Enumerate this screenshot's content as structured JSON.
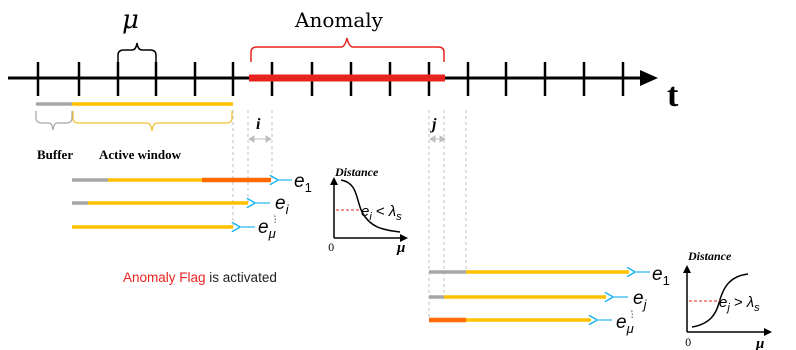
{
  "timeline": {
    "axis_label": "t",
    "mu_label": "μ",
    "anomaly_label": "Anomaly"
  },
  "window": {
    "buffer_label": "Buffer",
    "active_label": "Active window",
    "i_label": "i",
    "j_label": "j"
  },
  "errors_left": {
    "e1": {
      "base": "e",
      "sub": "1"
    },
    "ei": {
      "base": "e",
      "sub": "i"
    },
    "emu": {
      "base": "e",
      "sub": "μ"
    }
  },
  "errors_right": {
    "e1": {
      "base": "e",
      "sub": "1"
    },
    "ej": {
      "base": "e",
      "sub": "j"
    },
    "emu": {
      "base": "e",
      "sub": "μ"
    }
  },
  "plot_left": {
    "ylabel": "Distance",
    "xlabel": "μ",
    "origin": "0",
    "relation_base": "e",
    "relation_sub": "i",
    "relation_op": "< λ",
    "relation_op_sub": "s"
  },
  "plot_right": {
    "ylabel": "Distance",
    "xlabel": "μ",
    "origin": "0",
    "relation_base": "e",
    "relation_sub": "j",
    "relation_op": "> λ",
    "relation_op_sub": "s"
  },
  "flag": {
    "highlight": "Anomaly Flag",
    "rest": " is activated"
  },
  "colors": {
    "axis": "#000000",
    "anomaly": "#e8231f",
    "active": "#ffc000",
    "buffer": "#a6a6a6",
    "anomalous_segment": "#ff6a00",
    "arrow": "#1fb6f0",
    "bracket_buffer": "#a6a6a6",
    "bracket_active": "#f2c030",
    "guide": "#bfbfbf"
  }
}
